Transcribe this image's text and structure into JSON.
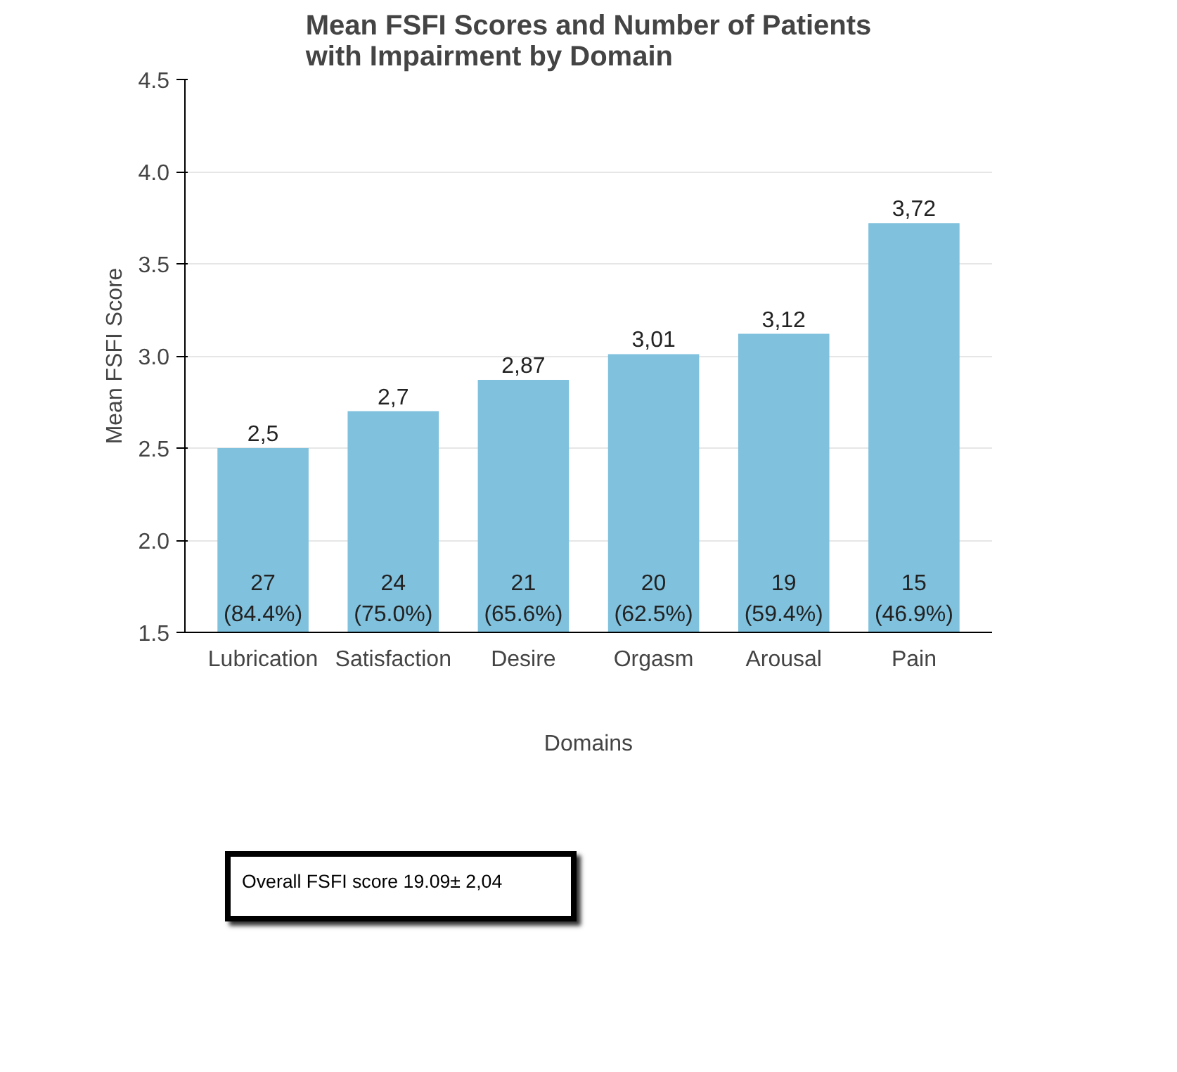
{
  "chart_data": {
    "type": "bar",
    "title": "Mean FSFI Scores and Number of Patients\nwith Impairment by Domain",
    "xlabel": "Domains",
    "ylabel": "Mean FSFI Score",
    "categories": [
      "Lubrication",
      "Satisfaction",
      "Desire",
      "Orgasm",
      "Arousal",
      "Pain"
    ],
    "values": [
      2.5,
      2.7,
      2.87,
      3.01,
      3.12,
      3.72
    ],
    "value_labels": [
      "2,5",
      "2,7",
      "2,87",
      "3,01",
      "3,12",
      "3,72"
    ],
    "color": "#80c1dd",
    "ylim": [
      1.5,
      4.5
    ],
    "yticks": [
      {
        "value": 1.5,
        "label": "1.5"
      },
      {
        "value": 2,
        "label": "2.0"
      },
      {
        "value": 2.5,
        "label": "2.5"
      },
      {
        "value": 3,
        "label": "3.0"
      },
      {
        "value": 3.5,
        "label": "3.5"
      },
      {
        "value": 4,
        "label": "4.0"
      },
      {
        "value": 4.5,
        "label": "4.5"
      }
    ],
    "grid": "y",
    "annotations": [
      {
        "text": "27\n(84.4%)",
        "x": "Lubrication",
        "y": 1.5
      },
      {
        "text": "24\n(75.0%)",
        "x": "Satisfaction",
        "y": 1.5
      },
      {
        "text": "21\n(65.6%)",
        "x": "Desire",
        "y": 1.5
      },
      {
        "text": "20\n(62.5%)",
        "x": "Orgasm",
        "y": 1.5
      },
      {
        "text": "19\n(59.4%)",
        "x": "Arousal",
        "y": 1.5
      },
      {
        "text": "15\n(46.9%)",
        "x": "Pain",
        "y": 1.5
      },
      "Overall FSFI score 19.09± 2,04"
    ]
  }
}
